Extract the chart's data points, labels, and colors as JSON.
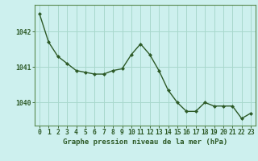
{
  "x": [
    0,
    1,
    2,
    3,
    4,
    5,
    6,
    7,
    8,
    9,
    10,
    11,
    12,
    13,
    14,
    15,
    16,
    17,
    18,
    19,
    20,
    21,
    22,
    23
  ],
  "y": [
    1042.5,
    1041.7,
    1041.3,
    1041.1,
    1040.9,
    1040.85,
    1040.8,
    1040.8,
    1040.9,
    1040.95,
    1041.35,
    1041.65,
    1041.35,
    1040.9,
    1040.35,
    1040.0,
    1039.75,
    1039.75,
    1040.0,
    1039.9,
    1039.9,
    1039.9,
    1039.55,
    1039.7
  ],
  "line_color": "#2d5a27",
  "marker_color": "#2d5a27",
  "bg_color": "#cdf0ee",
  "grid_color": "#a8d8cc",
  "xlabel": "Graphe pression niveau de la mer (hPa)",
  "xlabel_color": "#2d5a27",
  "tick_label_color": "#2d5a27",
  "ytick_labels": [
    "1040",
    "1041",
    "1042"
  ],
  "ytick_values": [
    1040,
    1041,
    1042
  ],
  "ylim": [
    1039.35,
    1042.75
  ],
  "xlim": [
    -0.5,
    23.5
  ],
  "xtick_labels": [
    "0",
    "1",
    "2",
    "3",
    "4",
    "5",
    "6",
    "7",
    "8",
    "9",
    "10",
    "11",
    "12",
    "13",
    "14",
    "15",
    "16",
    "17",
    "18",
    "19",
    "20",
    "21",
    "22",
    "23"
  ],
  "axis_color": "#5a8a50",
  "label_fontsize": 6.5,
  "tick_fontsize": 5.8
}
